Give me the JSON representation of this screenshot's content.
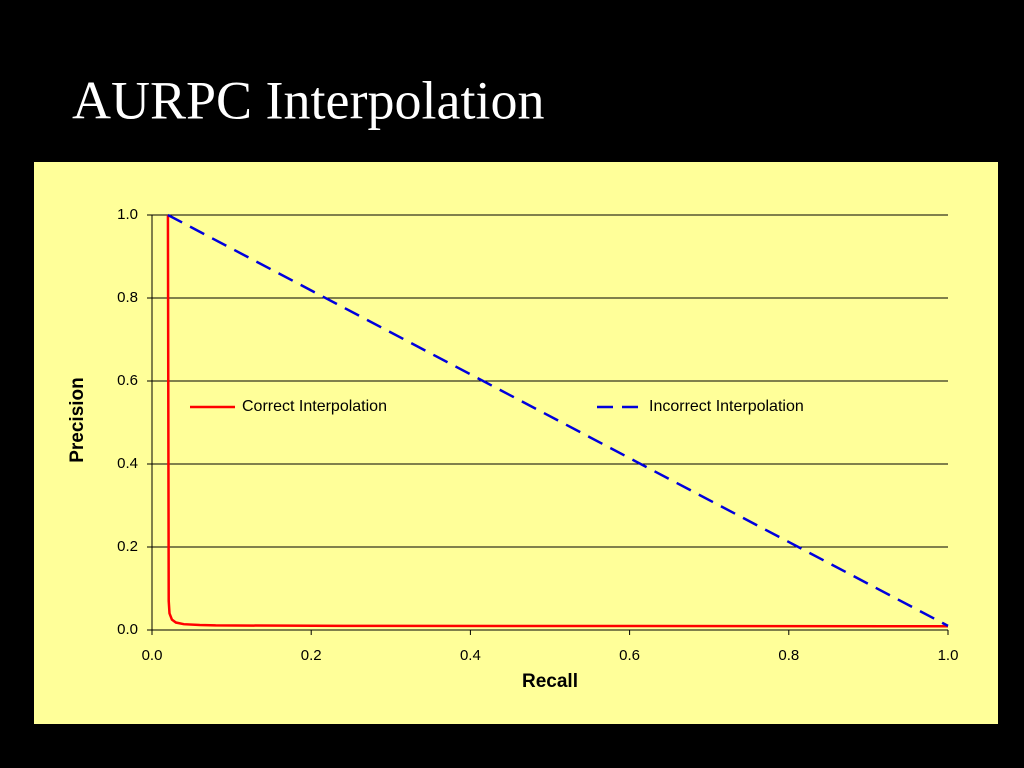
{
  "chart_data": {
    "type": "line",
    "title": "AURPC Interpolation",
    "x_label": "Recall",
    "y_label": "Precision",
    "xlim": [
      0,
      1
    ],
    "ylim": [
      0,
      1
    ],
    "xticks": [
      {
        "value": 0,
        "label": "0.0"
      },
      0.2,
      0.4,
      0.6,
      0.8,
      {
        "value": 1,
        "label": "1.0"
      }
    ],
    "yticks": [
      {
        "value": 0,
        "label": "0.0"
      },
      0.2,
      0.4,
      0.6,
      0.8,
      {
        "value": 1,
        "label": "1.0"
      }
    ],
    "grid": true,
    "series": [
      {
        "name": "Correct Interpolation",
        "color": "#ff0000",
        "dash": false,
        "x": [
          0.02,
          0.021,
          0.022,
          0.025,
          0.03,
          0.04,
          0.06,
          0.08,
          0.24,
          1.0
        ],
        "values": [
          1.0,
          0.07,
          0.04,
          0.025,
          0.018,
          0.014,
          0.012,
          0.011,
          0.01,
          0.009
        ]
      },
      {
        "name": "Incorrect Interpolation",
        "color": "#0000dd",
        "dash": true,
        "x": [
          0.02,
          1.0
        ],
        "values": [
          1.0,
          0.01
        ]
      }
    ]
  }
}
